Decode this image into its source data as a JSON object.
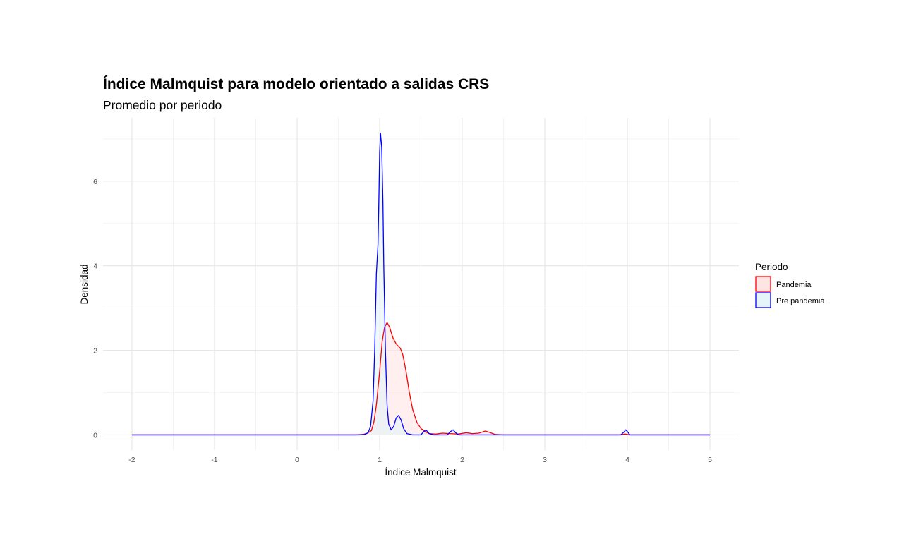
{
  "chart_data": {
    "type": "area",
    "title": "Índice Malmquist para modelo orientado a salidas CRS",
    "subtitle": "Promedio por periodo",
    "xlabel": "Índice Malmquist",
    "ylabel": "Densidad",
    "xlim": [
      -2.35,
      5.35
    ],
    "ylim": [
      -0.36,
      7.5
    ],
    "x_ticks": [
      "-2",
      "-1",
      "0",
      "1",
      "2",
      "3",
      "4",
      "5"
    ],
    "y_ticks": [
      "0",
      "2",
      "4",
      "6"
    ],
    "grid": true,
    "legend": {
      "title": "Periodo",
      "position": "right"
    },
    "series": [
      {
        "name": "Pandemia",
        "line_color": "#ff0000",
        "fill_color": "#ffe4e4",
        "points": [
          [
            -2,
            0
          ],
          [
            0.7,
            0
          ],
          [
            0.8,
            0.01
          ],
          [
            0.85,
            0.04
          ],
          [
            0.9,
            0.1
          ],
          [
            0.93,
            0.3
          ],
          [
            0.96,
            0.7
          ],
          [
            1.0,
            1.5
          ],
          [
            1.03,
            2.2
          ],
          [
            1.06,
            2.55
          ],
          [
            1.09,
            2.66
          ],
          [
            1.12,
            2.55
          ],
          [
            1.16,
            2.3
          ],
          [
            1.2,
            2.15
          ],
          [
            1.25,
            2.05
          ],
          [
            1.28,
            1.9
          ],
          [
            1.32,
            1.5
          ],
          [
            1.36,
            1.0
          ],
          [
            1.4,
            0.6
          ],
          [
            1.45,
            0.3
          ],
          [
            1.5,
            0.15
          ],
          [
            1.55,
            0.08
          ],
          [
            1.6,
            0.03
          ],
          [
            1.68,
            0.02
          ],
          [
            1.76,
            0.04
          ],
          [
            1.85,
            0.03
          ],
          [
            1.95,
            0.02
          ],
          [
            2.05,
            0.05
          ],
          [
            2.12,
            0.03
          ],
          [
            2.2,
            0.04
          ],
          [
            2.28,
            0.09
          ],
          [
            2.33,
            0.06
          ],
          [
            2.4,
            0.01
          ],
          [
            2.5,
            0
          ],
          [
            3.9,
            0
          ],
          [
            3.97,
            0.02
          ],
          [
            4.03,
            0
          ],
          [
            5,
            0
          ]
        ]
      },
      {
        "name": "Pre pandemia",
        "line_color": "#0000ff",
        "fill_color": "#e4f4f8",
        "points": [
          [
            -2,
            0
          ],
          [
            0.75,
            0
          ],
          [
            0.82,
            0.01
          ],
          [
            0.86,
            0.05
          ],
          [
            0.89,
            0.2
          ],
          [
            0.92,
            0.8
          ],
          [
            0.94,
            2.0
          ],
          [
            0.96,
            3.8
          ],
          [
            0.98,
            4.5
          ],
          [
            0.99,
            5.5
          ],
          [
            1.0,
            6.7
          ],
          [
            1.01,
            7.14
          ],
          [
            1.025,
            6.8
          ],
          [
            1.04,
            5.5
          ],
          [
            1.05,
            4.0
          ],
          [
            1.07,
            2.0
          ],
          [
            1.09,
            0.7
          ],
          [
            1.11,
            0.25
          ],
          [
            1.14,
            0.12
          ],
          [
            1.17,
            0.2
          ],
          [
            1.2,
            0.4
          ],
          [
            1.23,
            0.46
          ],
          [
            1.26,
            0.35
          ],
          [
            1.29,
            0.15
          ],
          [
            1.33,
            0.03
          ],
          [
            1.4,
            0
          ],
          [
            1.5,
            0
          ],
          [
            1.53,
            0.07
          ],
          [
            1.56,
            0.12
          ],
          [
            1.6,
            0.03
          ],
          [
            1.65,
            0
          ],
          [
            1.82,
            0
          ],
          [
            1.86,
            0.08
          ],
          [
            1.89,
            0.12
          ],
          [
            1.92,
            0.05
          ],
          [
            1.96,
            0
          ],
          [
            3.92,
            0
          ],
          [
            3.96,
            0.07
          ],
          [
            3.98,
            0.12
          ],
          [
            4.0,
            0.08
          ],
          [
            4.03,
            0
          ],
          [
            5,
            0
          ]
        ]
      }
    ]
  }
}
